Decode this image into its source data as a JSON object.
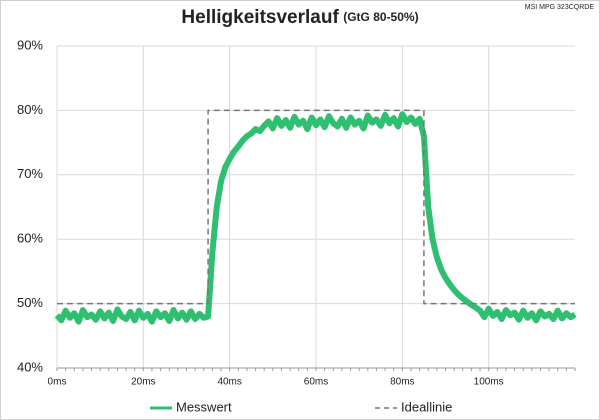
{
  "chart_data": {
    "type": "line",
    "title": "Helligkeitsverlauf",
    "subtitle": "(GtG 80-50%)",
    "annotation": "MSI MPG 323CQRDE",
    "xlim": [
      0,
      120
    ],
    "ylim": [
      40,
      90
    ],
    "xticks": [
      {
        "value": 0,
        "label": "0ms"
      },
      {
        "value": 20,
        "label": "20ms"
      },
      {
        "value": 40,
        "label": "40ms"
      },
      {
        "value": 60,
        "label": "60ms"
      },
      {
        "value": 80,
        "label": "80ms"
      },
      {
        "value": 100,
        "label": "100ms"
      }
    ],
    "yticks": [
      {
        "value": 40,
        "label": "40%"
      },
      {
        "value": 50,
        "label": "50%"
      },
      {
        "value": 60,
        "label": "60%"
      },
      {
        "value": 70,
        "label": "70%"
      },
      {
        "value": 80,
        "label": "80%"
      },
      {
        "value": 90,
        "label": "90%"
      }
    ],
    "grid": true,
    "series": [
      {
        "name": "Messwert",
        "color": "#2fbf71",
        "style": "solid",
        "x": [
          0,
          1,
          2,
          3,
          4,
          5,
          6,
          7,
          8,
          9,
          10,
          11,
          12,
          13,
          14,
          15,
          16,
          17,
          18,
          19,
          20,
          21,
          22,
          23,
          24,
          25,
          26,
          27,
          28,
          29,
          30,
          31,
          32,
          33,
          34,
          35,
          36,
          37,
          38,
          39,
          40,
          41,
          42,
          43,
          44,
          45,
          46,
          47,
          48,
          49,
          50,
          51,
          52,
          53,
          54,
          55,
          56,
          57,
          58,
          59,
          60,
          61,
          62,
          63,
          64,
          65,
          66,
          67,
          68,
          69,
          70,
          71,
          72,
          73,
          74,
          75,
          76,
          77,
          78,
          79,
          80,
          81,
          82,
          83,
          84,
          85,
          86,
          87,
          88,
          89,
          90,
          91,
          92,
          93,
          94,
          95,
          96,
          97,
          98,
          99,
          100,
          101,
          102,
          103,
          104,
          105,
          106,
          107,
          108,
          109,
          110,
          111,
          112,
          113,
          114,
          115,
          116,
          117,
          118,
          119,
          120
        ],
        "values": [
          48.2,
          47.4,
          48.9,
          47.8,
          48.5,
          47.2,
          49.0,
          47.9,
          48.3,
          47.5,
          48.8,
          47.7,
          48.6,
          47.3,
          49.1,
          48.0,
          47.6,
          48.7,
          47.4,
          48.9,
          47.8,
          48.4,
          47.2,
          48.8,
          47.9,
          48.5,
          47.3,
          49.0,
          47.7,
          48.6,
          47.5,
          48.8,
          47.6,
          48.4,
          47.8,
          48.0,
          58.0,
          65.0,
          69.0,
          71.2,
          72.5,
          73.6,
          74.4,
          75.3,
          76.0,
          76.4,
          77.1,
          76.8,
          77.6,
          78.3,
          77.2,
          78.8,
          77.6,
          78.5,
          77.3,
          79.0,
          77.8,
          78.4,
          77.1,
          78.9,
          77.7,
          78.6,
          77.4,
          79.1,
          78.0,
          77.5,
          78.7,
          77.3,
          78.9,
          77.8,
          78.4,
          77.2,
          79.2,
          78.1,
          78.6,
          77.6,
          79.3,
          78.0,
          78.8,
          77.5,
          79.4,
          78.2,
          78.9,
          77.9,
          78.7,
          76.0,
          65.0,
          60.0,
          57.2,
          55.3,
          54.0,
          53.0,
          52.1,
          51.4,
          50.8,
          50.3,
          49.8,
          49.4,
          48.9,
          47.9,
          49.2,
          48.1,
          48.7,
          47.6,
          49.0,
          48.2,
          48.6,
          47.5,
          48.9,
          47.8,
          48.5,
          47.4,
          48.8,
          48.0,
          48.4,
          47.6,
          48.9,
          47.7,
          48.5,
          47.9,
          48.3
        ]
      },
      {
        "name": "Ideallinie",
        "color": "#777777",
        "style": "dashed",
        "x": [
          0,
          35,
          35,
          85,
          85,
          120
        ],
        "values": [
          50,
          50,
          80,
          80,
          50,
          50
        ]
      }
    ]
  }
}
